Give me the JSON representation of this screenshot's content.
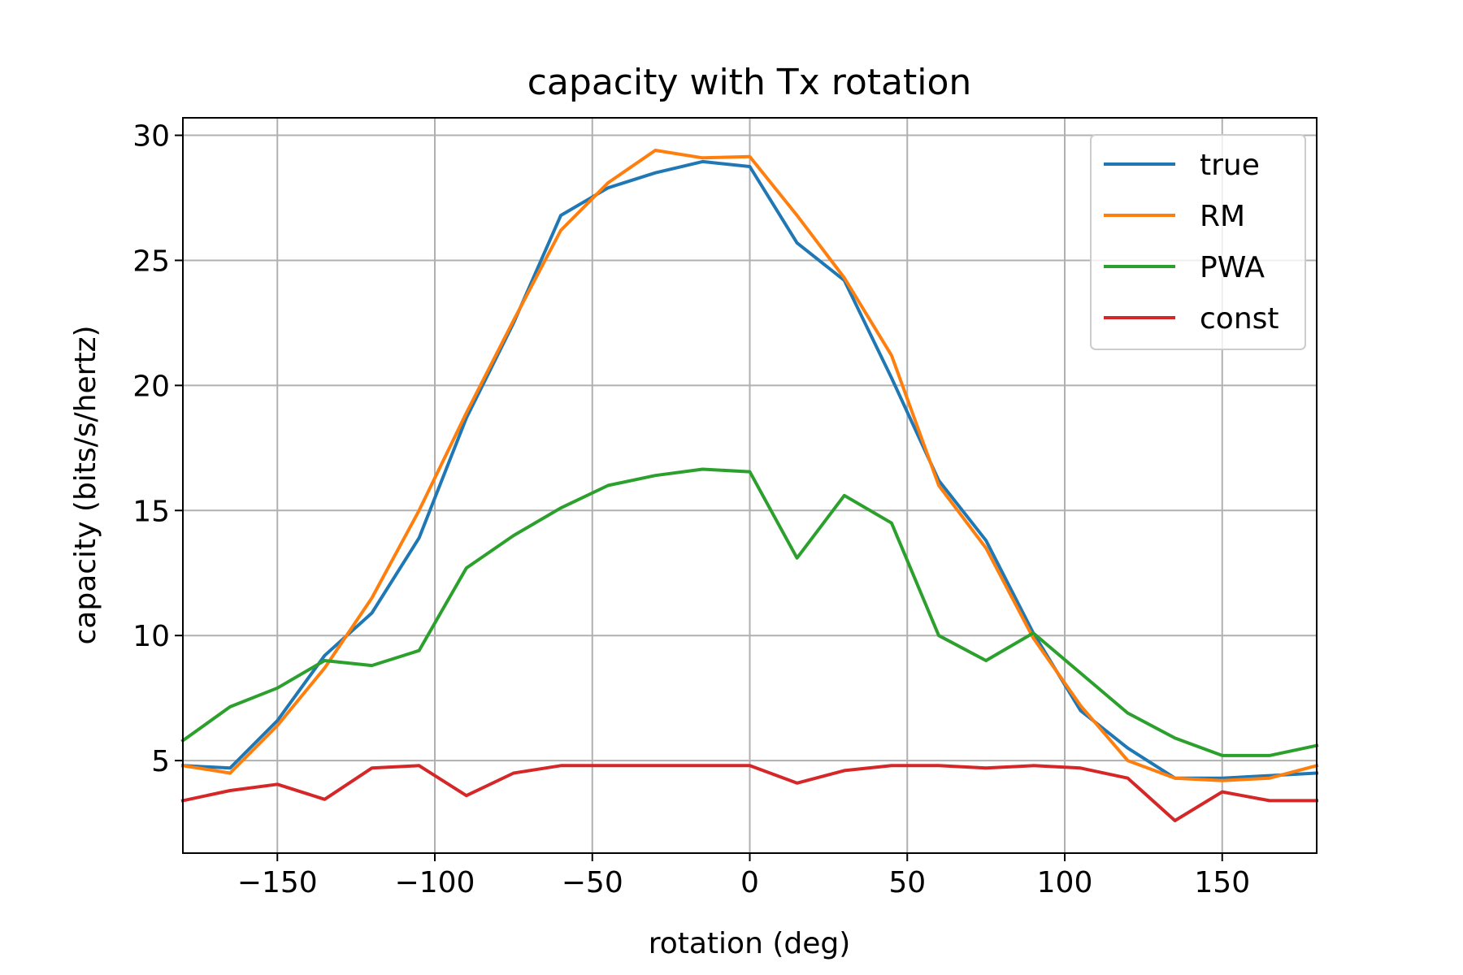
{
  "chart_data": {
    "type": "line",
    "title": "capacity with Tx rotation",
    "xlabel": "rotation (deg)",
    "ylabel": "capacity (bits/s/hertz)",
    "xlim": [
      -180,
      180
    ],
    "ylim": [
      1.3,
      30.7
    ],
    "xticks": [
      -150,
      -100,
      -50,
      0,
      50,
      100,
      150
    ],
    "xtick_labels": [
      "−150",
      "−100",
      "−50",
      "0",
      "50",
      "100",
      "150"
    ],
    "yticks": [
      5,
      10,
      15,
      20,
      25,
      30
    ],
    "ytick_labels": [
      "5",
      "10",
      "15",
      "20",
      "25",
      "30"
    ],
    "grid": true,
    "legend_position": "top-right",
    "x": [
      -180,
      -165,
      -150,
      -135,
      -120,
      -105,
      -90,
      -75,
      -60,
      -45,
      -30,
      -15,
      0,
      15,
      30,
      45,
      60,
      75,
      90,
      105,
      120,
      135,
      150,
      165,
      180
    ],
    "series": [
      {
        "name": "true",
        "color": "#1f77b4",
        "values": [
          4.8,
          4.7,
          6.6,
          9.2,
          10.9,
          13.9,
          18.7,
          22.5,
          26.8,
          27.9,
          28.5,
          28.95,
          28.75,
          25.7,
          24.2,
          20.3,
          16.2,
          13.8,
          10.1,
          7.0,
          5.5,
          4.3,
          4.3,
          4.4,
          4.5
        ]
      },
      {
        "name": "RM",
        "color": "#ff7f0e",
        "values": [
          4.8,
          4.5,
          6.4,
          8.7,
          11.5,
          15.0,
          18.9,
          22.6,
          26.2,
          28.1,
          29.4,
          29.1,
          29.15,
          26.8,
          24.3,
          21.2,
          16.0,
          13.5,
          9.9,
          7.2,
          5.0,
          4.3,
          4.2,
          4.3,
          4.8
        ]
      },
      {
        "name": "PWA",
        "color": "#2ca02c",
        "values": [
          5.8,
          7.15,
          7.9,
          9.0,
          8.8,
          9.4,
          12.7,
          14.0,
          15.1,
          16.0,
          16.4,
          16.65,
          16.55,
          13.1,
          15.6,
          14.5,
          10.0,
          9.0,
          10.1,
          8.5,
          6.9,
          5.9,
          5.2,
          5.2,
          5.6
        ]
      },
      {
        "name": "const",
        "color": "#d62728",
        "values": [
          3.4,
          3.8,
          4.05,
          3.45,
          4.7,
          4.8,
          3.6,
          4.5,
          4.8,
          4.8,
          4.8,
          4.8,
          4.8,
          4.1,
          4.6,
          4.8,
          4.8,
          4.7,
          4.8,
          4.7,
          4.3,
          2.6,
          3.75,
          3.4,
          3.4
        ]
      }
    ]
  }
}
